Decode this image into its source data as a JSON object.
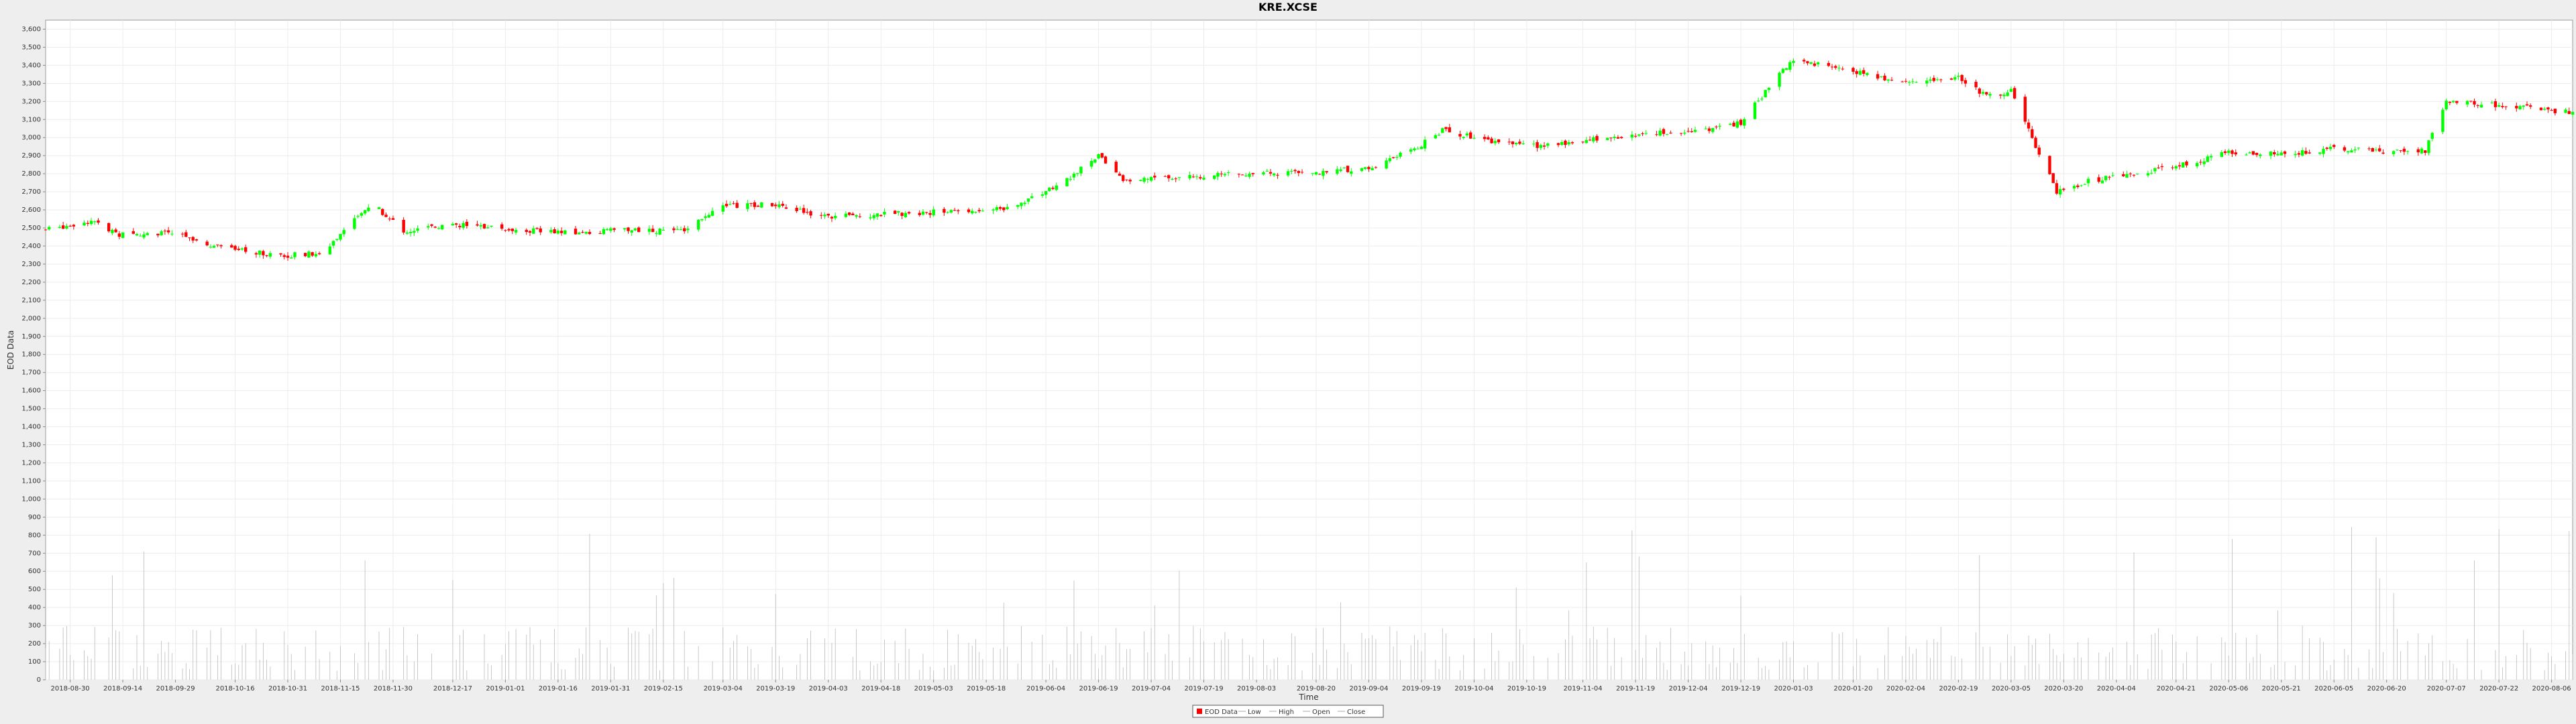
{
  "chart_data": {
    "type": "candlestick",
    "title": "KRE.XCSE",
    "xlabel": "Time",
    "ylabel": "EOD Data",
    "ylim": [
      0,
      3650
    ],
    "y_ticks": [
      0,
      100,
      200,
      300,
      400,
      500,
      600,
      700,
      800,
      900,
      1000,
      1100,
      1200,
      1300,
      1400,
      1500,
      1600,
      1700,
      1800,
      1900,
      2000,
      2100,
      2200,
      2300,
      2400,
      2500,
      2600,
      2700,
      2800,
      2900,
      3000,
      3100,
      3200,
      3300,
      3400,
      3500,
      3600
    ],
    "y_tick_labels": [
      "0",
      "100",
      "200",
      "300",
      "400",
      "500",
      "600",
      "700",
      "800",
      "900",
      "1,000",
      "1,100",
      "1,200",
      "1,300",
      "1,400",
      "1,500",
      "1,600",
      "1,700",
      "1,800",
      "1,900",
      "2,000",
      "2,100",
      "2,200",
      "2,300",
      "2,400",
      "2,500",
      "2,600",
      "2,700",
      "2,800",
      "2,900",
      "3,000",
      "3,100",
      "3,200",
      "3,300",
      "3,400",
      "3,500",
      "3,600"
    ],
    "x_tick_labels": [
      "2018-08-30",
      "2018-09-14",
      "2018-09-29",
      "2018-10-16",
      "2018-10-31",
      "2018-11-15",
      "2018-11-30",
      "2018-12-17",
      "2019-01-01",
      "2019-01-16",
      "2019-01-31",
      "2019-02-15",
      "2019-03-04",
      "2019-03-19",
      "2019-04-03",
      "2019-04-18",
      "2019-05-03",
      "2019-05-18",
      "2019-06-04",
      "2019-06-19",
      "2019-07-04",
      "2019-07-19",
      "2019-08-03",
      "2019-08-20",
      "2019-09-04",
      "2019-09-19",
      "2019-10-04",
      "2019-10-19",
      "2019-11-04",
      "2019-11-19",
      "2019-12-04",
      "2019-12-19",
      "2020-01-03",
      "2020-01-20",
      "2020-02-04",
      "2020-02-19",
      "2020-03-05",
      "2020-03-20",
      "2020-04-04",
      "2020-04-21",
      "2020-05-06",
      "2020-05-21",
      "2020-06-05",
      "2020-06-20",
      "2020-07-07",
      "2020-07-22",
      "2020-08-06"
    ],
    "date_range": [
      "2018-08-23",
      "2020-08-12"
    ],
    "legend_position": "bottom-center",
    "legend": [
      "EOD Data",
      "Low",
      "High",
      "Open",
      "Close"
    ],
    "grid": true,
    "close_anchors": [
      {
        "date": "2018-08-23",
        "close": 2490
      },
      {
        "date": "2018-09-05",
        "close": 2540
      },
      {
        "date": "2018-09-12",
        "close": 2465
      },
      {
        "date": "2018-09-29",
        "close": 2470
      },
      {
        "date": "2018-10-14",
        "close": 2380
      },
      {
        "date": "2018-10-31",
        "close": 2350
      },
      {
        "date": "2018-11-10",
        "close": 2360
      },
      {
        "date": "2018-11-24",
        "close": 2640
      },
      {
        "date": "2018-12-03",
        "close": 2480
      },
      {
        "date": "2018-12-17",
        "close": 2520
      },
      {
        "date": "2019-01-05",
        "close": 2490
      },
      {
        "date": "2019-01-20",
        "close": 2470
      },
      {
        "date": "2019-02-05",
        "close": 2490
      },
      {
        "date": "2019-02-20",
        "close": 2480
      },
      {
        "date": "2019-03-04",
        "close": 2620
      },
      {
        "date": "2019-03-19",
        "close": 2630
      },
      {
        "date": "2019-04-03",
        "close": 2560
      },
      {
        "date": "2019-04-18",
        "close": 2575
      },
      {
        "date": "2019-05-06",
        "close": 2590
      },
      {
        "date": "2019-05-24",
        "close": 2610
      },
      {
        "date": "2019-06-08",
        "close": 2740
      },
      {
        "date": "2019-06-19",
        "close": 2900
      },
      {
        "date": "2019-06-26",
        "close": 2760
      },
      {
        "date": "2019-07-04",
        "close": 2770
      },
      {
        "date": "2019-07-19",
        "close": 2790
      },
      {
        "date": "2019-08-03",
        "close": 2800
      },
      {
        "date": "2019-08-20",
        "close": 2810
      },
      {
        "date": "2019-09-04",
        "close": 2830
      },
      {
        "date": "2019-09-19",
        "close": 2960
      },
      {
        "date": "2019-09-25",
        "close": 3040
      },
      {
        "date": "2019-10-04",
        "close": 3000
      },
      {
        "date": "2019-10-19",
        "close": 2950
      },
      {
        "date": "2019-11-04",
        "close": 2980
      },
      {
        "date": "2019-11-19",
        "close": 3020
      },
      {
        "date": "2019-12-04",
        "close": 3030
      },
      {
        "date": "2019-12-19",
        "close": 3080
      },
      {
        "date": "2019-12-27",
        "close": 3280
      },
      {
        "date": "2020-01-03",
        "close": 3430
      },
      {
        "date": "2020-01-20",
        "close": 3370
      },
      {
        "date": "2020-02-04",
        "close": 3300
      },
      {
        "date": "2020-02-19",
        "close": 3330
      },
      {
        "date": "2020-02-27",
        "close": 3230
      },
      {
        "date": "2020-03-05",
        "close": 3260
      },
      {
        "date": "2020-03-11",
        "close": 3000
      },
      {
        "date": "2020-03-18",
        "close": 2700
      },
      {
        "date": "2020-03-27",
        "close": 2760
      },
      {
        "date": "2020-04-21",
        "close": 2840
      },
      {
        "date": "2020-05-06",
        "close": 2920
      },
      {
        "date": "2020-05-21",
        "close": 2910
      },
      {
        "date": "2020-06-05",
        "close": 2940
      },
      {
        "date": "2020-06-20",
        "close": 2920
      },
      {
        "date": "2020-07-01",
        "close": 2930
      },
      {
        "date": "2020-07-07",
        "close": 3200
      },
      {
        "date": "2020-07-22",
        "close": 3180
      },
      {
        "date": "2020-08-06",
        "close": 3150
      },
      {
        "date": "2020-08-12",
        "close": 3140
      }
    ],
    "colors": {
      "up": "#00ff00",
      "down": "#ff0000",
      "volume": "#bbbbbb",
      "plot_bg": "#ffffff",
      "grid": "#ececec",
      "legend_up": "#ff0000"
    }
  }
}
